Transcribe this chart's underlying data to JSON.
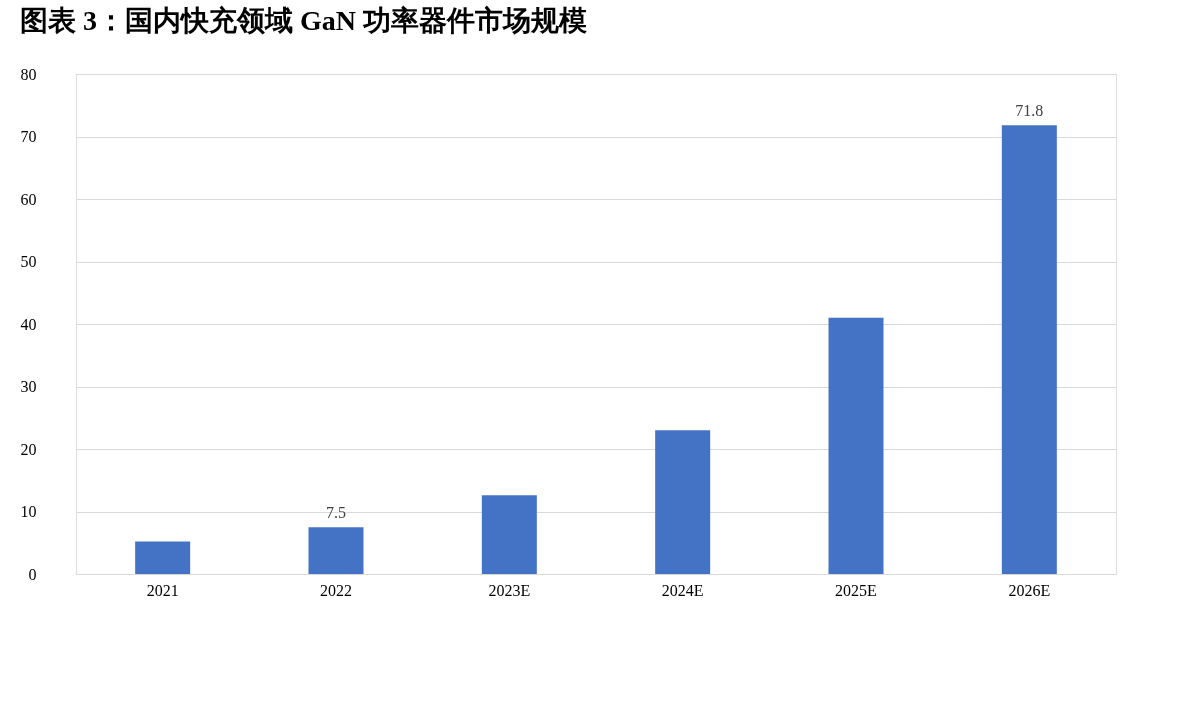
{
  "chart_data": {
    "type": "bar",
    "title": "图表 3：国内快充领域 GaN 功率器件市场规模",
    "categories": [
      "2021",
      "2022",
      "2023E",
      "2024E",
      "2025E",
      "2026E"
    ],
    "values": [
      5.2,
      7.5,
      12.6,
      23,
      41,
      71.8
    ],
    "value_labels": [
      null,
      "7.5",
      null,
      null,
      null,
      "71.8"
    ],
    "color": "#4472c4",
    "ylim": [
      0,
      80
    ],
    "yticks": [
      0,
      10,
      20,
      30,
      40,
      50,
      60,
      70,
      80
    ],
    "grid": "y"
  }
}
